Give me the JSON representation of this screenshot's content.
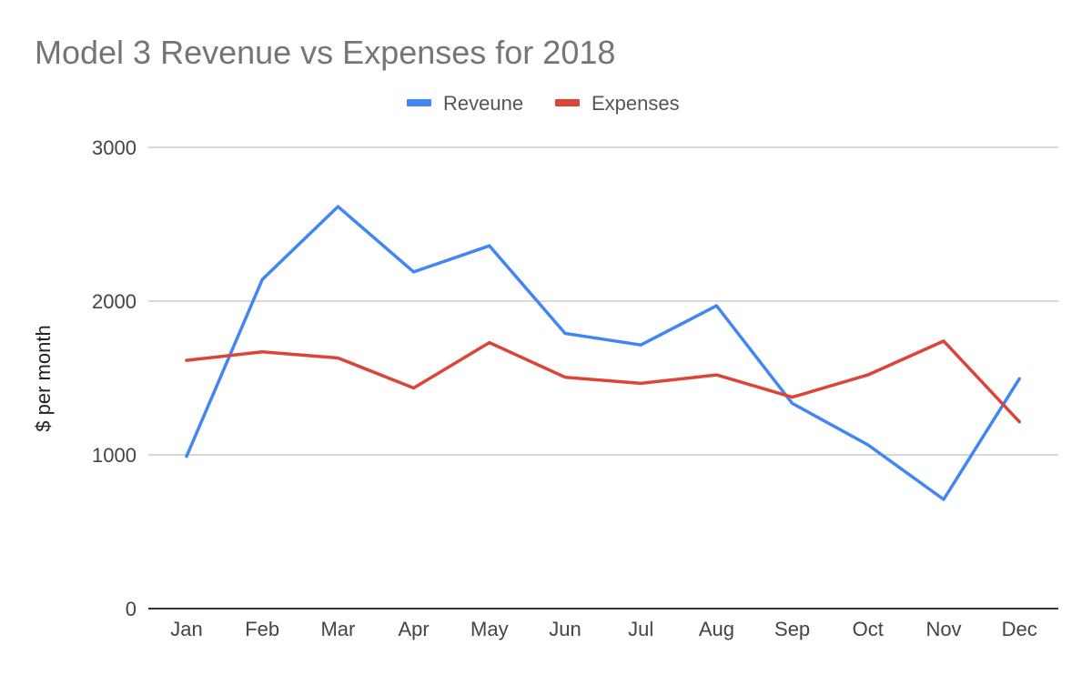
{
  "chart_data": {
    "type": "line",
    "title": "Model 3 Revenue vs Expenses for 2018",
    "xlabel": "",
    "ylabel": "$ per month",
    "categories": [
      "Jan",
      "Feb",
      "Mar",
      "Apr",
      "May",
      "Jun",
      "Jul",
      "Aug",
      "Sep",
      "Oct",
      "Nov",
      "Dec"
    ],
    "series": [
      {
        "name": "Reveune",
        "color": "#4285f4",
        "values": [
          990,
          2140,
          2615,
          2190,
          2360,
          1790,
          1715,
          1970,
          1335,
          1065,
          710,
          1495
        ]
      },
      {
        "name": "Expenses",
        "color": "#db4437",
        "values": [
          1615,
          1670,
          1630,
          1435,
          1730,
          1505,
          1465,
          1520,
          1375,
          1520,
          1740,
          1215
        ]
      }
    ],
    "ylim": [
      0,
      3000
    ],
    "yticks": [
      "0",
      "1000",
      "2000",
      "3000"
    ],
    "grid": true,
    "legend": "top"
  }
}
